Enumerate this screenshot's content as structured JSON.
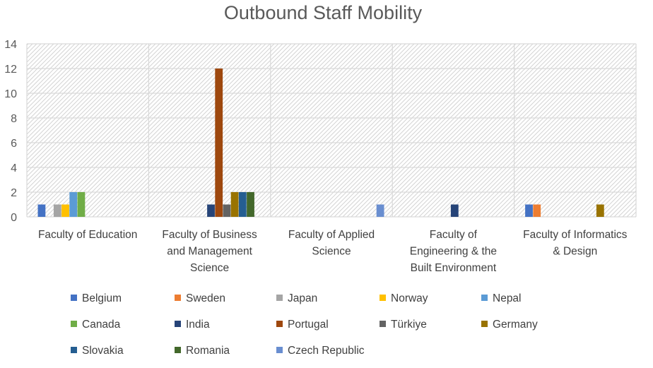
{
  "chart_data": {
    "type": "bar",
    "title": "Outbound Staff Mobility",
    "xlabel": "",
    "ylabel": "",
    "ylim": [
      0,
      14
    ],
    "yticks": [
      "0",
      "2",
      "4",
      "6",
      "8",
      "10",
      "12",
      "14"
    ],
    "grid": true,
    "legend_position": "bottom",
    "categories": [
      [
        "Faculty of Education"
      ],
      [
        "Faculty of Business",
        "and Management",
        "Science"
      ],
      [
        "Faculty of Applied",
        "Science"
      ],
      [
        "Faculty of",
        "Engineering & the",
        "Built Environment"
      ],
      [
        "Faculty of Informatics",
        "& Design"
      ]
    ],
    "series": [
      {
        "name": "Belgium",
        "color": "#4472C4",
        "values": [
          1,
          0,
          0,
          0,
          1
        ]
      },
      {
        "name": "Sweden",
        "color": "#ED7D31",
        "values": [
          0,
          0,
          0,
          0,
          1
        ]
      },
      {
        "name": "Japan",
        "color": "#A5A5A5",
        "values": [
          1,
          0,
          0,
          0,
          0
        ]
      },
      {
        "name": "Norway",
        "color": "#FFC000",
        "values": [
          1,
          0,
          0,
          0,
          0
        ]
      },
      {
        "name": "Nepal",
        "color": "#5B9BD5",
        "values": [
          2,
          0,
          0,
          0,
          0
        ]
      },
      {
        "name": "Canada",
        "color": "#70AD47",
        "values": [
          2,
          0,
          0,
          0,
          0
        ]
      },
      {
        "name": "India",
        "color": "#264478",
        "values": [
          0,
          1,
          0,
          1,
          0
        ]
      },
      {
        "name": "Portugal",
        "color": "#9E480E",
        "values": [
          0,
          12,
          0,
          0,
          0
        ]
      },
      {
        "name": "Türkiye",
        "color": "#636363",
        "values": [
          0,
          1,
          0,
          0,
          0
        ]
      },
      {
        "name": "Germany",
        "color": "#997300",
        "values": [
          0,
          2,
          0,
          0,
          1
        ]
      },
      {
        "name": "Slovakia",
        "color": "#255E91",
        "values": [
          0,
          2,
          0,
          0,
          0
        ]
      },
      {
        "name": "Romania",
        "color": "#43682B",
        "values": [
          0,
          2,
          0,
          0,
          0
        ]
      },
      {
        "name": "Czech Republic",
        "color": "#698ED0",
        "values": [
          0,
          0,
          1,
          0,
          0
        ]
      }
    ]
  }
}
